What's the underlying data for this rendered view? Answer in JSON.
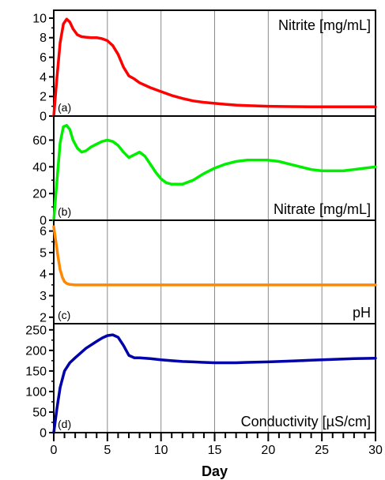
{
  "chart_data": {
    "type": "line",
    "xlabel": "Day",
    "xlim": [
      0,
      30
    ],
    "x_ticks": [
      0,
      5,
      10,
      15,
      20,
      25,
      30
    ],
    "grid": "vertical lines at 5, 10, 15, 20, 25",
    "panels": [
      {
        "id": "a",
        "letter": "(a)",
        "title": "Nitrite [mg/mL]",
        "color": "#ff0000",
        "ylim": [
          0,
          10.8
        ],
        "y_ticks": [
          0,
          2,
          4,
          6,
          8,
          10
        ],
        "series": {
          "x": [
            0,
            0.3,
            0.6,
            0.9,
            1.2,
            1.5,
            1.8,
            2.2,
            2.6,
            3.0,
            3.5,
            4.0,
            4.5,
            5.0,
            5.5,
            6.0,
            6.5,
            7.0,
            7.5,
            8.0,
            9.0,
            10.0,
            11.0,
            12.0,
            13.0,
            14.0,
            15.0,
            16.0,
            17.0,
            18.0,
            20.0,
            22.0,
            24.0,
            26.0,
            28.0,
            30.0
          ],
          "y": [
            0,
            4.0,
            7.5,
            9.4,
            9.9,
            9.6,
            8.9,
            8.3,
            8.1,
            8.05,
            8.0,
            8.0,
            7.9,
            7.7,
            7.2,
            6.3,
            5.0,
            4.1,
            3.8,
            3.4,
            2.9,
            2.5,
            2.1,
            1.8,
            1.55,
            1.4,
            1.3,
            1.2,
            1.12,
            1.07,
            1.0,
            0.97,
            0.95,
            0.95,
            0.95,
            0.95
          ]
        }
      },
      {
        "id": "b",
        "letter": "(b)",
        "title": "Nitrate [mg/mL]",
        "color": "#00ee00",
        "ylim": [
          0,
          78
        ],
        "y_ticks": [
          0,
          20,
          40,
          60
        ],
        "series": {
          "x": [
            0,
            0.3,
            0.6,
            0.9,
            1.2,
            1.5,
            1.8,
            2.2,
            2.6,
            3.0,
            3.5,
            4.0,
            4.5,
            5.0,
            5.5,
            6.0,
            6.5,
            7.0,
            7.5,
            8.0,
            8.5,
            9.0,
            9.5,
            10.0,
            10.5,
            11.0,
            12.0,
            13.0,
            14.0,
            15.0,
            16.0,
            17.0,
            18.0,
            19.0,
            20.0,
            21.0,
            22.0,
            23.0,
            24.0,
            25.0,
            26.0,
            27.0,
            28.0,
            29.0,
            30.0
          ],
          "y": [
            0,
            30,
            58,
            70,
            71,
            68,
            60,
            54,
            51,
            52,
            55,
            57,
            59,
            60,
            59,
            56,
            51,
            47,
            49,
            51,
            48,
            42,
            36,
            31,
            28,
            27,
            27,
            30,
            35,
            39,
            42,
            44,
            45,
            45,
            45,
            44,
            42,
            40,
            38,
            37,
            37,
            37,
            38,
            39,
            40
          ]
        }
      },
      {
        "id": "c",
        "letter": "(c)",
        "title": "pH",
        "color": "#ff8800",
        "ylim": [
          1.7,
          6.5
        ],
        "y_ticks": [
          2,
          3,
          4,
          5,
          6
        ],
        "series": {
          "x": [
            0,
            0.2,
            0.4,
            0.6,
            0.8,
            1.0,
            1.2,
            1.5,
            2.0,
            3.0,
            4.0,
            6.0,
            10.0,
            15.0,
            20.0,
            25.0,
            30.0
          ],
          "y": [
            6.2,
            5.5,
            4.8,
            4.2,
            3.85,
            3.65,
            3.57,
            3.52,
            3.5,
            3.5,
            3.5,
            3.5,
            3.5,
            3.5,
            3.5,
            3.5,
            3.5
          ]
        }
      },
      {
        "id": "d",
        "letter": "(d)",
        "title": "Conductivity [µS/cm]",
        "color": "#0000aa",
        "ylim": [
          0,
          265
        ],
        "y_ticks": [
          0,
          50,
          100,
          150,
          200,
          250
        ],
        "series": {
          "x": [
            0,
            0.3,
            0.6,
            1.0,
            1.5,
            2.0,
            3.0,
            4.0,
            4.5,
            5.0,
            5.5,
            6.0,
            6.5,
            7.0,
            7.5,
            8.0,
            9.0,
            10.0,
            11.0,
            12.0,
            13.0,
            14.0,
            15.0,
            16.0,
            17.0,
            18.0,
            20.0,
            22.0,
            24.0,
            26.0,
            28.0,
            30.0
          ],
          "y": [
            0,
            60,
            110,
            150,
            170,
            182,
            205,
            222,
            230,
            236,
            238,
            232,
            212,
            188,
            182,
            182,
            180,
            177,
            175,
            173,
            172,
            171,
            170,
            170,
            170,
            171,
            172,
            174,
            176,
            178,
            180,
            181
          ]
        }
      }
    ]
  }
}
